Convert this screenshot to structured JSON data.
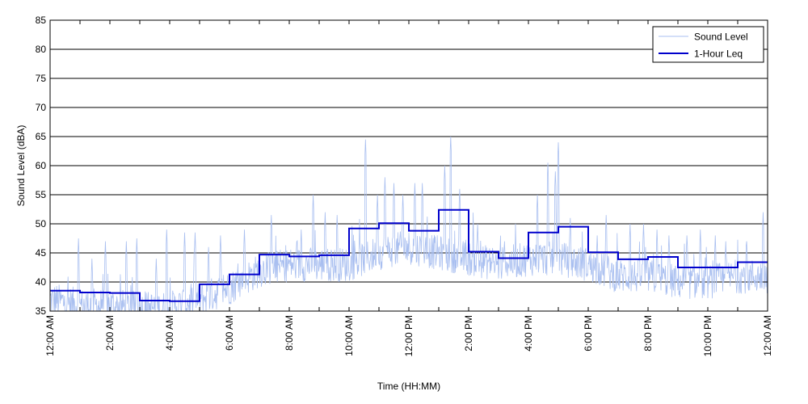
{
  "chart_data": {
    "type": "line",
    "title": "",
    "xlabel": "Time (HH:MM)",
    "ylabel": "Sound Level (dBA)",
    "xlim": [
      0,
      24
    ],
    "ylim": [
      35,
      85
    ],
    "y_ticks": [
      35,
      40,
      45,
      50,
      55,
      60,
      65,
      70,
      75,
      80,
      85
    ],
    "x_ticks": [
      {
        "hour": 0,
        "label": "12:00 AM"
      },
      {
        "hour": 2,
        "label": "2:00 AM"
      },
      {
        "hour": 4,
        "label": "4:00 AM"
      },
      {
        "hour": 6,
        "label": "6:00 AM"
      },
      {
        "hour": 8,
        "label": "8:00 AM"
      },
      {
        "hour": 10,
        "label": "10:00 AM"
      },
      {
        "hour": 12,
        "label": "12:00 PM"
      },
      {
        "hour": 14,
        "label": "2:00 PM"
      },
      {
        "hour": 16,
        "label": "4:00 PM"
      },
      {
        "hour": 18,
        "label": "6:00 PM"
      },
      {
        "hour": 20,
        "label": "8:00 PM"
      },
      {
        "hour": 22,
        "label": "10:00 PM"
      },
      {
        "hour": 24,
        "label": "12:00 AM"
      }
    ],
    "grid": "horizontal",
    "legend_position": "top-right",
    "series": [
      {
        "name": "Sound Level",
        "color": "#a9bff0",
        "style": "thin-line",
        "hour_means": [
          37,
          36,
          36,
          35.5,
          35.5,
          37,
          39,
          42,
          43,
          43,
          43,
          45,
          46,
          45,
          44,
          43,
          44,
          44,
          43,
          41,
          41,
          40,
          40,
          41
        ],
        "peaks": [
          {
            "hour": 0.95,
            "level": 47.5
          },
          {
            "hour": 1.4,
            "level": 44
          },
          {
            "hour": 1.85,
            "level": 47
          },
          {
            "hour": 2.55,
            "level": 47
          },
          {
            "hour": 2.9,
            "level": 47.5
          },
          {
            "hour": 3.55,
            "level": 44
          },
          {
            "hour": 3.9,
            "level": 49
          },
          {
            "hour": 4.5,
            "level": 48.5
          },
          {
            "hour": 4.85,
            "level": 48.5
          },
          {
            "hour": 5.3,
            "level": 46
          },
          {
            "hour": 5.7,
            "level": 48
          },
          {
            "hour": 6.5,
            "level": 49
          },
          {
            "hour": 7.4,
            "level": 51.5
          },
          {
            "hour": 8.4,
            "level": 49
          },
          {
            "hour": 8.8,
            "level": 55
          },
          {
            "hour": 9.2,
            "level": 52
          },
          {
            "hour": 9.6,
            "level": 51.5
          },
          {
            "hour": 10.55,
            "level": 64.5
          },
          {
            "hour": 10.95,
            "level": 55
          },
          {
            "hour": 11.2,
            "level": 58
          },
          {
            "hour": 11.5,
            "level": 57
          },
          {
            "hour": 11.8,
            "level": 55
          },
          {
            "hour": 12.2,
            "level": 57
          },
          {
            "hour": 12.45,
            "level": 57
          },
          {
            "hour": 13.2,
            "level": 60
          },
          {
            "hour": 13.4,
            "level": 65
          },
          {
            "hour": 13.7,
            "level": 56
          },
          {
            "hour": 14.3,
            "level": 50
          },
          {
            "hour": 15.2,
            "level": 47
          },
          {
            "hour": 16.3,
            "level": 55
          },
          {
            "hour": 16.65,
            "level": 60.5
          },
          {
            "hour": 16.9,
            "level": 59
          },
          {
            "hour": 17.0,
            "level": 64
          },
          {
            "hour": 17.4,
            "level": 51
          },
          {
            "hour": 18.3,
            "level": 48
          },
          {
            "hour": 18.6,
            "level": 51.5
          },
          {
            "hour": 19.4,
            "level": 50
          },
          {
            "hour": 19.85,
            "level": 50
          },
          {
            "hour": 20.3,
            "level": 49
          },
          {
            "hour": 20.7,
            "level": 48
          },
          {
            "hour": 21.3,
            "level": 48
          },
          {
            "hour": 21.75,
            "level": 49
          },
          {
            "hour": 22.25,
            "level": 48
          },
          {
            "hour": 22.6,
            "level": 47
          },
          {
            "hour": 23.3,
            "level": 47
          },
          {
            "hour": 23.85,
            "level": 52
          }
        ]
      },
      {
        "name": "1-Hour Leq",
        "color": "#0000cc",
        "style": "step",
        "values": [
          38.5,
          38.2,
          38.1,
          36.8,
          36.7,
          39.6,
          41.3,
          44.7,
          44.4,
          44.6,
          49.2,
          50.1,
          48.8,
          52.4,
          45.2,
          44.1,
          48.5,
          49.5,
          45.1,
          43.9,
          44.3,
          42.5,
          42.5,
          43.4
        ]
      }
    ]
  }
}
